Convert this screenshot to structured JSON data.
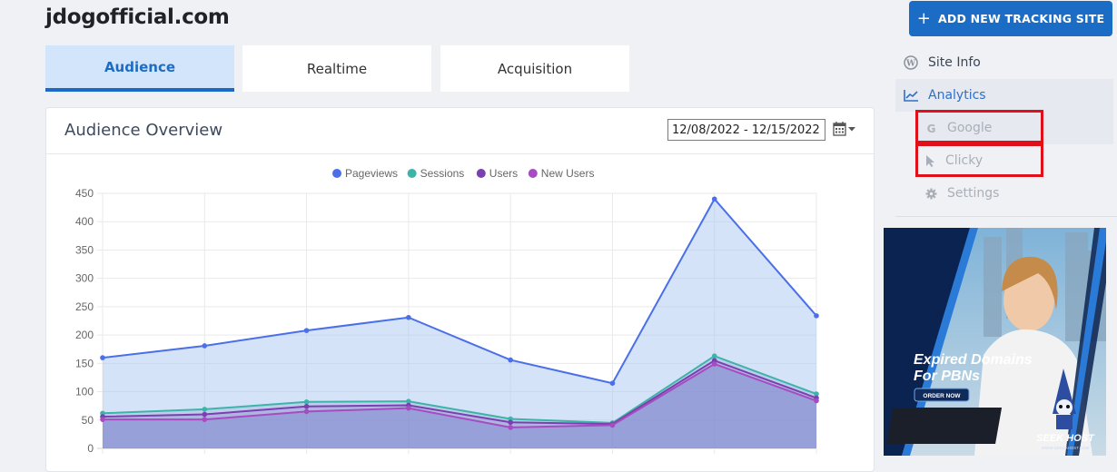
{
  "header": {
    "site_title": "jdogofficial.com",
    "add_button_label": "ADD NEW TRACKING SITE"
  },
  "tabs": [
    {
      "label": "Audience",
      "active": true
    },
    {
      "label": "Realtime",
      "active": false
    },
    {
      "label": "Acquisition",
      "active": false
    }
  ],
  "panel": {
    "title": "Audience Overview",
    "date_range": "12/08/2022 - 12/15/2022"
  },
  "sidebar": {
    "items": [
      {
        "label": "Site Info",
        "icon": "wordpress-icon"
      },
      {
        "label": "Analytics",
        "icon": "chart-line-icon",
        "active": true
      },
      {
        "label": "Google",
        "icon": "google-icon"
      },
      {
        "label": "Clicky",
        "icon": "cursor-icon"
      },
      {
        "label": "Settings",
        "icon": "gear-icon"
      }
    ]
  },
  "ad": {
    "headline_line1": "Expired Domains",
    "headline_line2": "For PBNs",
    "cta": "ORDER NOW",
    "brand": "SEEK HOST",
    "url": "WWW.SEEKAHOST.COM"
  },
  "chart_data": {
    "type": "area",
    "legend": [
      "Pageviews",
      "Sessions",
      "Users",
      "New Users"
    ],
    "yticks": [
      "450",
      "400",
      "350",
      "300",
      "250",
      "200",
      "150",
      "100",
      "50",
      "0"
    ],
    "ylim": [
      0,
      450
    ],
    "colors": {
      "Pageviews": "#4a6fe8",
      "Sessions": "#3cb4a8",
      "Users": "#7a3fb0",
      "New Users": "#a64cc0"
    },
    "series": [
      {
        "name": "Pageviews",
        "values": [
          160,
          181,
          208,
          231,
          156,
          115,
          440,
          234
        ]
      },
      {
        "name": "Sessions",
        "values": [
          62,
          69,
          82,
          83,
          52,
          45,
          163,
          96
        ]
      },
      {
        "name": "Users",
        "values": [
          56,
          60,
          74,
          76,
          46,
          43,
          155,
          89
        ]
      },
      {
        "name": "New Users",
        "values": [
          51,
          51,
          65,
          71,
          37,
          41,
          149,
          84
        ]
      }
    ]
  }
}
